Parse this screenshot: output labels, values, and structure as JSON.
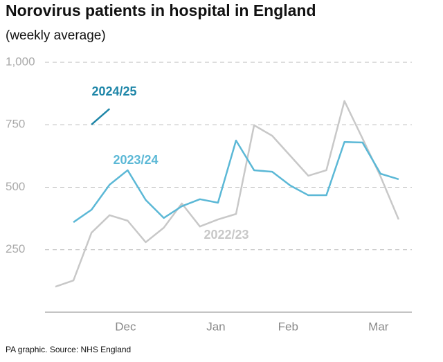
{
  "chart_data": {
    "type": "line",
    "title": "Norovirus patients in hospital in England",
    "subtitle": "(weekly average)",
    "source": "PA graphic. Source: NHS England",
    "categories": [
      null,
      null,
      null,
      null,
      "Dec",
      null,
      null,
      null,
      null,
      "Jan",
      null,
      null,
      null,
      "Feb",
      null,
      null,
      null,
      null,
      "Mar",
      null
    ],
    "series": [
      {
        "name": "2022/23",
        "color": "#c8c8c8",
        "values": [
          102,
          127,
          318,
          388,
          366,
          280,
          338,
          435,
          343,
          371,
          393,
          748,
          706,
          626,
          546,
          568,
          845,
          695,
          543,
          371
        ]
      },
      {
        "name": "2023/24",
        "color": "#5bb8d6",
        "values": [
          null,
          360,
          410,
          510,
          568,
          449,
          377,
          424,
          452,
          438,
          687,
          568,
          562,
          507,
          468,
          468,
          681,
          679,
          554,
          532
        ]
      },
      {
        "name": "2024/25",
        "color": "#1e86a8",
        "values": [
          null,
          null,
          751,
          814,
          null,
          null,
          null,
          null,
          null,
          null,
          null,
          null,
          null,
          null,
          null,
          null,
          null,
          null,
          null,
          null
        ]
      }
    ],
    "ylim": [
      0,
      1000
    ],
    "yticks": [
      250,
      500,
      750,
      {
        "value": 1000,
        "label": "1,000"
      }
    ],
    "grid": true
  }
}
